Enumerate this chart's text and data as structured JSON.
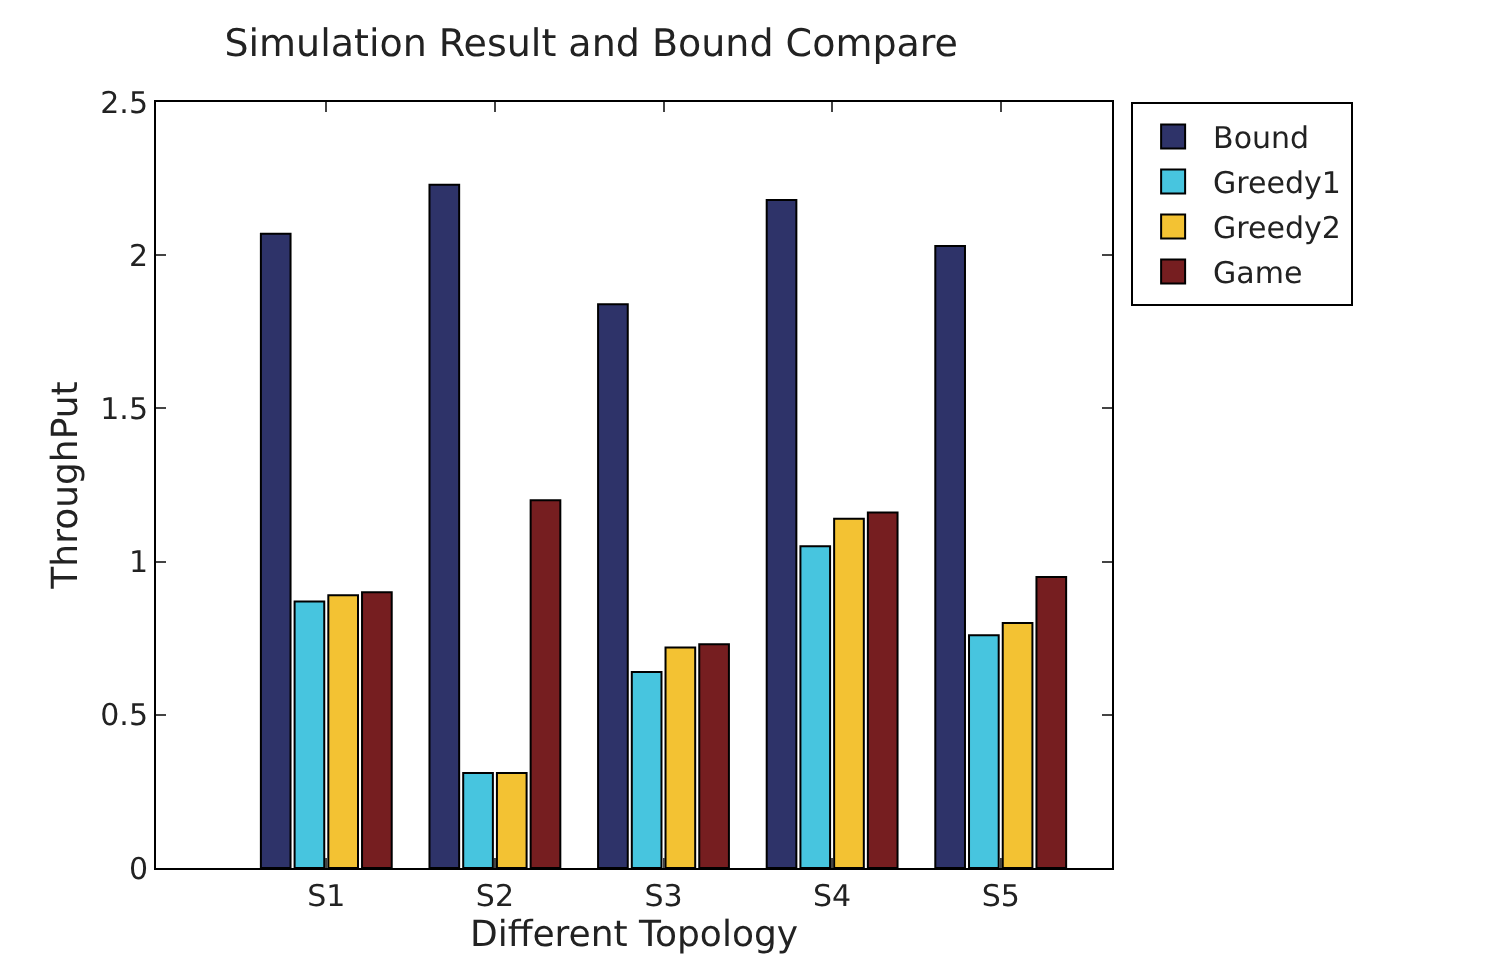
{
  "chart_data": {
    "type": "bar",
    "title": "Simulation Result and Bound Compare",
    "xlabel": "Different Topology",
    "ylabel": "ThroughPut",
    "categories": [
      "S1",
      "S2",
      "S3",
      "S4",
      "S5"
    ],
    "series": [
      {
        "name": "Bound",
        "color": "#2e3369",
        "values": [
          2.07,
          2.23,
          1.84,
          2.18,
          2.03
        ]
      },
      {
        "name": "Greedy1",
        "color": "#47c5df",
        "values": [
          0.87,
          0.31,
          0.64,
          1.05,
          0.76
        ]
      },
      {
        "name": "Greedy2",
        "color": "#f3c233",
        "values": [
          0.89,
          0.31,
          0.72,
          1.14,
          0.8
        ]
      },
      {
        "name": "Game",
        "color": "#761e20",
        "values": [
          0.9,
          1.2,
          0.73,
          1.16,
          0.95
        ]
      }
    ],
    "ylim": [
      0,
      2.5
    ],
    "yticks": [
      0,
      0.5,
      1,
      1.5,
      2,
      2.5
    ],
    "grid": false,
    "legend": "top right"
  }
}
